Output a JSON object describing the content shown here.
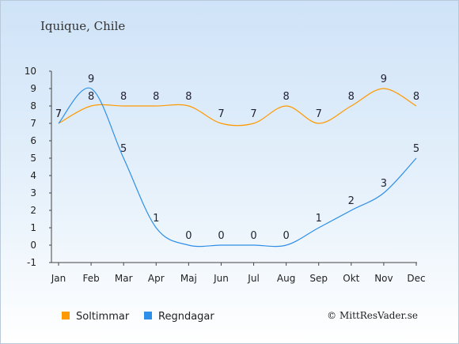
{
  "chart_data": {
    "type": "line",
    "title": "Iquique, Chile",
    "categories": [
      "Jan",
      "Feb",
      "Mar",
      "Apr",
      "Maj",
      "Jun",
      "Jul",
      "Aug",
      "Sep",
      "Okt",
      "Nov",
      "Dec"
    ],
    "ylim": [
      -1,
      10
    ],
    "yticks": [
      -1,
      0,
      1,
      2,
      3,
      4,
      5,
      6,
      7,
      8,
      9,
      10
    ],
    "grid": false,
    "legend_position": "bottom-left",
    "series": [
      {
        "name": "Soltimmar",
        "color": "#ff9900",
        "values": [
          7,
          8,
          8,
          8,
          8,
          7,
          7,
          8,
          7,
          8,
          9,
          8
        ]
      },
      {
        "name": "Regndagar",
        "color": "#2e8fe8",
        "values": [
          7,
          9,
          5,
          1,
          0,
          0,
          0,
          0,
          1,
          2,
          3,
          5
        ]
      }
    ],
    "credit": "© MittResVader.se"
  }
}
